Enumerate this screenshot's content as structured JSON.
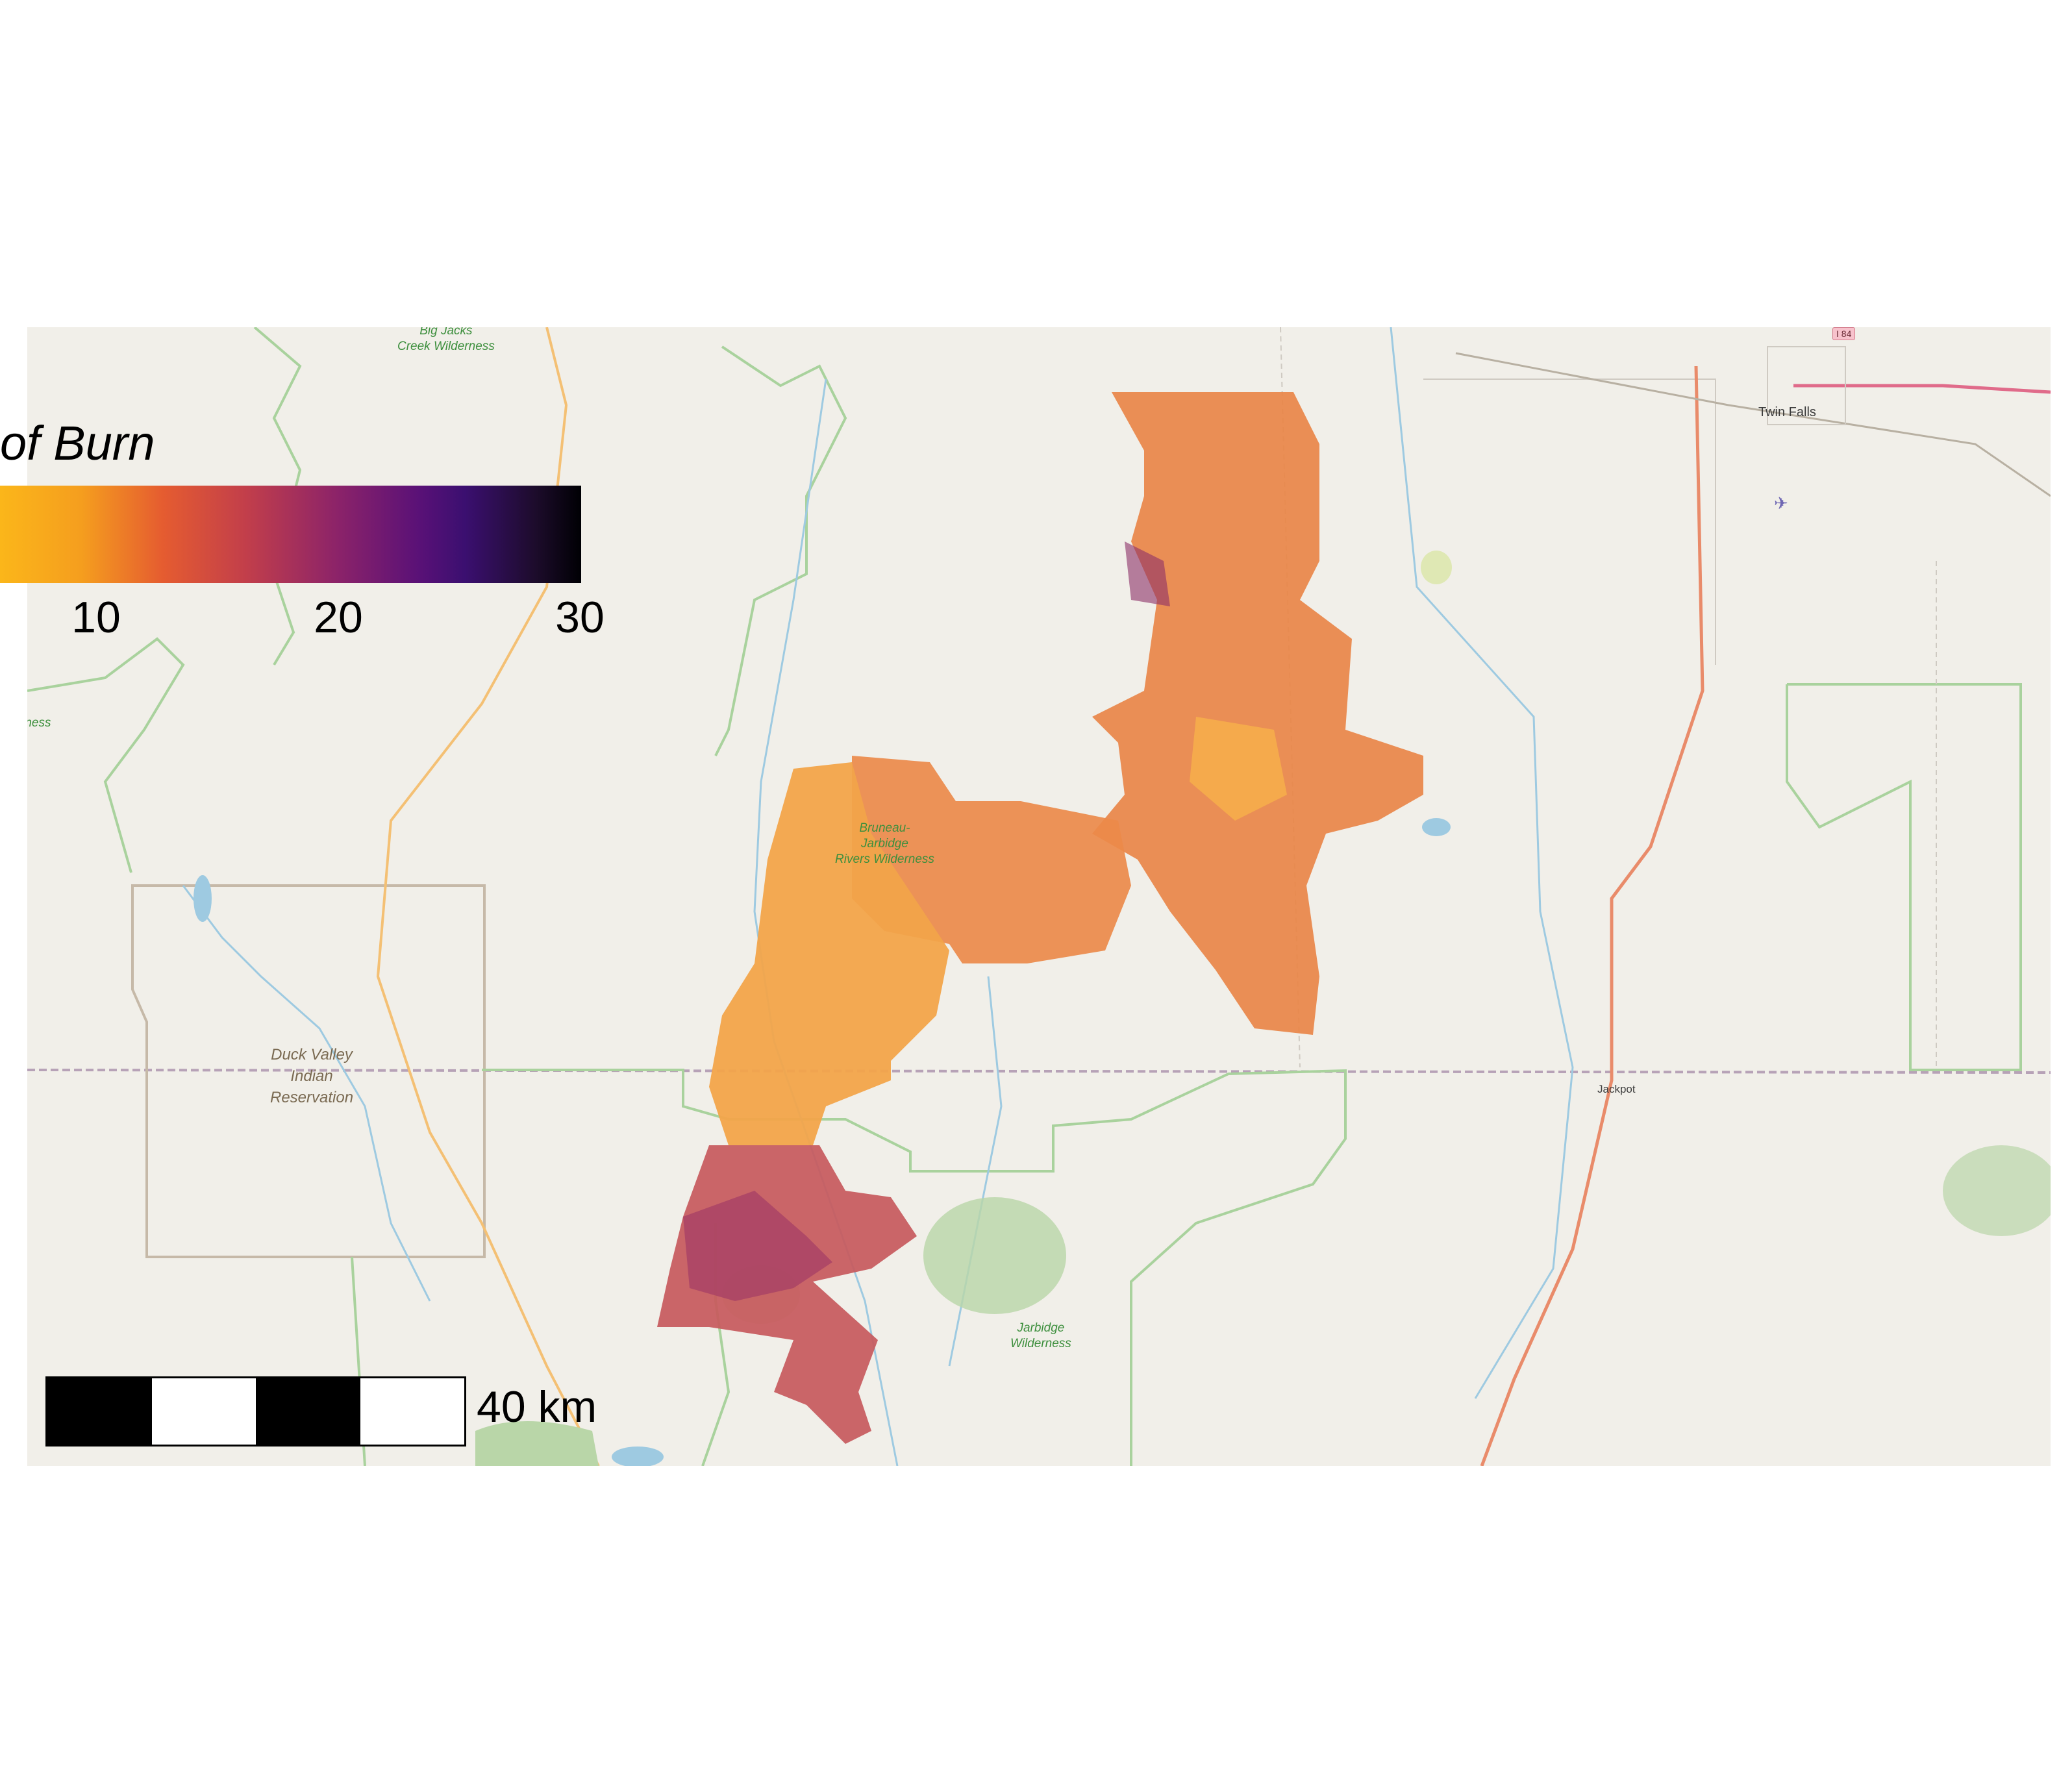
{
  "legend": {
    "title": "of Burn",
    "ticks": [
      "10",
      "20",
      "30"
    ],
    "colors": [
      "#fbb61a",
      "#e55c30",
      "#8c2369",
      "#3b0f70",
      "#000004"
    ]
  },
  "scale": {
    "label": "40 km"
  },
  "places": {
    "big_jacks": "Big Jacks\nCreek Wilderness",
    "wilderness_partial": "e\nrness",
    "bruneau": "Bruneau-\nJarbidge\nRivers Wilderness",
    "duck_valley": "Duck Valley\nIndian\nReservation",
    "jarbidge": "Jarbidge\nWilderness",
    "twin_falls": "Twin Falls",
    "jackpot": "Jackpot",
    "i84": "I 84"
  },
  "colors": {
    "land": "#f1efe9",
    "water": "#9ecae1",
    "park": "#b9d6a8",
    "boundary": "#9ccc8f"
  }
}
